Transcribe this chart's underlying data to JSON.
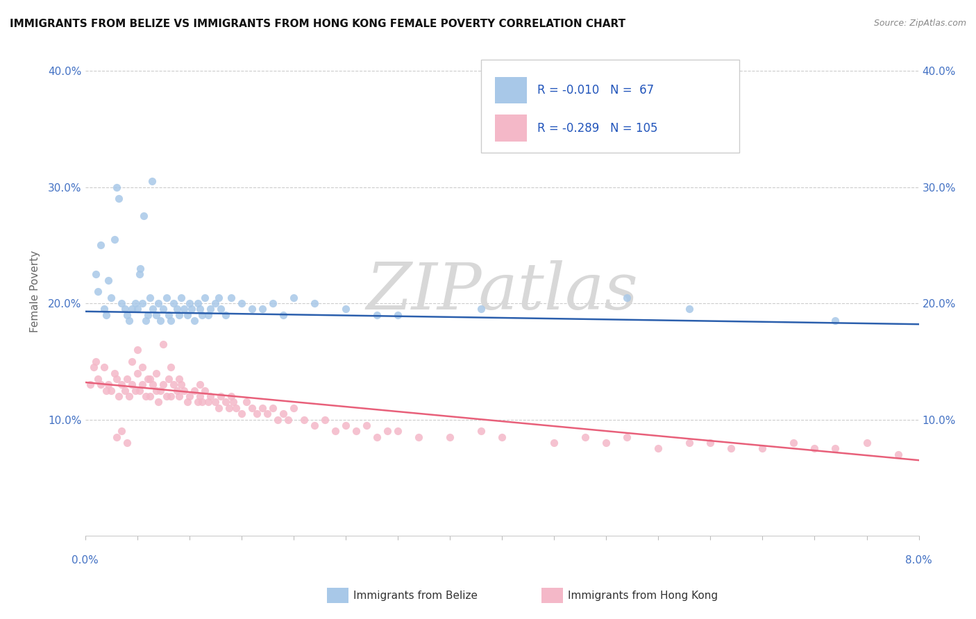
{
  "title": "IMMIGRANTS FROM BELIZE VS IMMIGRANTS FROM HONG KONG FEMALE POVERTY CORRELATION CHART",
  "source_text": "Source: ZipAtlas.com",
  "ylabel": "Female Poverty",
  "legend_label1": "Immigrants from Belize",
  "legend_label2": "Immigrants from Hong Kong",
  "r1": "-0.010",
  "n1": "67",
  "r2": "-0.289",
  "n2": "105",
  "color1": "#a8c8e8",
  "color2": "#f4b8c8",
  "line_color1": "#2b5fad",
  "line_color2": "#e8607a",
  "scatter_alpha": 0.85,
  "scatter_size": 65,
  "xlim": [
    0.0,
    8.0
  ],
  "ylim": [
    0.0,
    42.0
  ],
  "watermark": "ZIPatlas",
  "belize_x": [
    0.18,
    0.2,
    0.25,
    0.35,
    0.38,
    0.4,
    0.42,
    0.45,
    0.48,
    0.5,
    0.55,
    0.58,
    0.6,
    0.62,
    0.65,
    0.68,
    0.7,
    0.72,
    0.75,
    0.78,
    0.8,
    0.82,
    0.85,
    0.88,
    0.9,
    0.92,
    0.95,
    0.98,
    1.0,
    1.02,
    1.05,
    1.08,
    1.1,
    1.12,
    1.15,
    1.18,
    1.2,
    1.25,
    1.3,
    1.35,
    1.4,
    1.5,
    1.6,
    1.7,
    1.8,
    1.9,
    2.0,
    2.2,
    2.5,
    3.0,
    0.1,
    0.12,
    0.15,
    0.22,
    0.28,
    0.3,
    0.32,
    0.52,
    0.53,
    0.56,
    0.64,
    1.28,
    2.8,
    3.8,
    5.2,
    5.8,
    7.2
  ],
  "belize_y": [
    19.5,
    19.0,
    20.5,
    20.0,
    19.5,
    19.0,
    18.5,
    19.5,
    20.0,
    19.5,
    20.0,
    18.5,
    19.0,
    20.5,
    19.5,
    19.0,
    20.0,
    18.5,
    19.5,
    20.5,
    19.0,
    18.5,
    20.0,
    19.5,
    19.0,
    20.5,
    19.5,
    19.0,
    20.0,
    19.5,
    18.5,
    20.0,
    19.5,
    19.0,
    20.5,
    19.0,
    19.5,
    20.0,
    19.5,
    19.0,
    20.5,
    20.0,
    19.5,
    19.5,
    20.0,
    19.0,
    20.5,
    20.0,
    19.5,
    19.0,
    22.5,
    21.0,
    25.0,
    22.0,
    25.5,
    30.0,
    29.0,
    22.5,
    23.0,
    27.5,
    30.5,
    20.5,
    19.0,
    19.5,
    20.5,
    19.5,
    18.5
  ],
  "hongkong_x": [
    0.05,
    0.08,
    0.1,
    0.12,
    0.15,
    0.18,
    0.2,
    0.22,
    0.25,
    0.28,
    0.3,
    0.32,
    0.35,
    0.38,
    0.4,
    0.42,
    0.45,
    0.48,
    0.5,
    0.52,
    0.55,
    0.58,
    0.6,
    0.62,
    0.65,
    0.68,
    0.7,
    0.72,
    0.75,
    0.78,
    0.8,
    0.82,
    0.85,
    0.88,
    0.9,
    0.92,
    0.95,
    0.98,
    1.0,
    1.05,
    1.08,
    1.1,
    1.12,
    1.15,
    1.18,
    1.2,
    1.25,
    1.28,
    1.3,
    1.35,
    1.38,
    1.4,
    1.42,
    1.45,
    1.5,
    1.55,
    1.6,
    1.65,
    1.7,
    1.75,
    1.8,
    1.85,
    1.9,
    1.95,
    2.0,
    2.1,
    2.2,
    2.3,
    2.4,
    2.5,
    2.6,
    2.7,
    2.8,
    2.9,
    3.0,
    3.2,
    3.5,
    3.8,
    4.0,
    4.5,
    4.8,
    5.0,
    5.2,
    5.5,
    5.8,
    6.0,
    6.2,
    6.5,
    6.8,
    7.0,
    7.2,
    7.5,
    7.8,
    0.3,
    0.35,
    0.4,
    0.45,
    0.5,
    0.55,
    0.62,
    0.68,
    0.75,
    0.82,
    0.9,
    1.1
  ],
  "hongkong_y": [
    13.0,
    14.5,
    15.0,
    13.5,
    13.0,
    14.5,
    12.5,
    13.0,
    12.5,
    14.0,
    13.5,
    12.0,
    13.0,
    12.5,
    13.5,
    12.0,
    13.0,
    12.5,
    14.0,
    12.5,
    13.0,
    12.0,
    13.5,
    12.0,
    13.0,
    12.5,
    11.5,
    12.5,
    13.0,
    12.0,
    13.5,
    12.0,
    13.0,
    12.5,
    12.0,
    13.0,
    12.5,
    11.5,
    12.0,
    12.5,
    11.5,
    12.0,
    11.5,
    12.5,
    11.5,
    12.0,
    11.5,
    11.0,
    12.0,
    11.5,
    11.0,
    12.0,
    11.5,
    11.0,
    10.5,
    11.5,
    11.0,
    10.5,
    11.0,
    10.5,
    11.0,
    10.0,
    10.5,
    10.0,
    11.0,
    10.0,
    9.5,
    10.0,
    9.0,
    9.5,
    9.0,
    9.5,
    8.5,
    9.0,
    9.0,
    8.5,
    8.5,
    9.0,
    8.5,
    8.0,
    8.5,
    8.0,
    8.5,
    7.5,
    8.0,
    8.0,
    7.5,
    7.5,
    8.0,
    7.5,
    7.5,
    8.0,
    7.0,
    8.5,
    9.0,
    8.0,
    15.0,
    16.0,
    14.5,
    13.5,
    14.0,
    16.5,
    14.5,
    13.5,
    13.0
  ]
}
